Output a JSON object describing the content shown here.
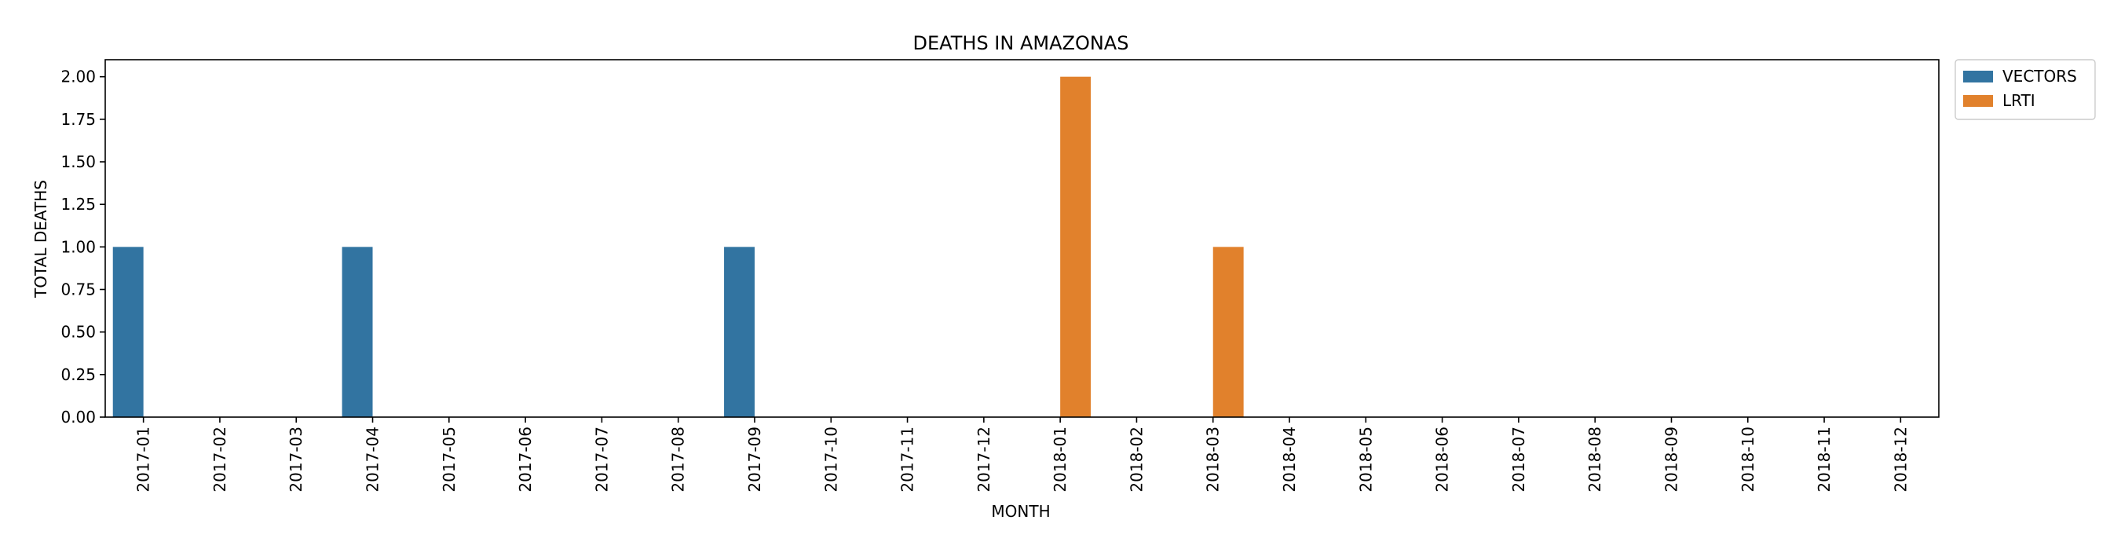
{
  "chart_data": {
    "type": "bar",
    "title": "DEATHS IN AMAZONAS",
    "xlabel": "MONTH",
    "ylabel": "TOTAL DEATHS",
    "ylim": [
      0,
      2.1
    ],
    "yticks": [
      "0.00",
      "0.25",
      "0.50",
      "0.75",
      "1.00",
      "1.25",
      "1.50",
      "1.75",
      "2.00"
    ],
    "grid": false,
    "legend_position": "outside-top-right",
    "categories": [
      "2017-01",
      "2017-02",
      "2017-03",
      "2017-04",
      "2017-05",
      "2017-06",
      "2017-07",
      "2017-08",
      "2017-09",
      "2017-10",
      "2017-11",
      "2017-12",
      "2018-01",
      "2018-02",
      "2018-03",
      "2018-04",
      "2018-05",
      "2018-06",
      "2018-07",
      "2018-08",
      "2018-09",
      "2018-10",
      "2018-11",
      "2018-12"
    ],
    "series": [
      {
        "name": "VECTORS",
        "color": "#3274a1",
        "values": [
          1,
          0,
          0,
          1,
          0,
          0,
          0,
          0,
          1,
          0,
          0,
          0,
          0,
          0,
          0,
          0,
          0,
          0,
          0,
          0,
          0,
          0,
          0,
          0
        ]
      },
      {
        "name": "LRTI",
        "color": "#e1812c",
        "values": [
          0,
          0,
          0,
          0,
          0,
          0,
          0,
          0,
          0,
          0,
          0,
          0,
          2,
          0,
          1,
          0,
          0,
          0,
          0,
          0,
          0,
          0,
          0,
          0
        ]
      }
    ]
  }
}
